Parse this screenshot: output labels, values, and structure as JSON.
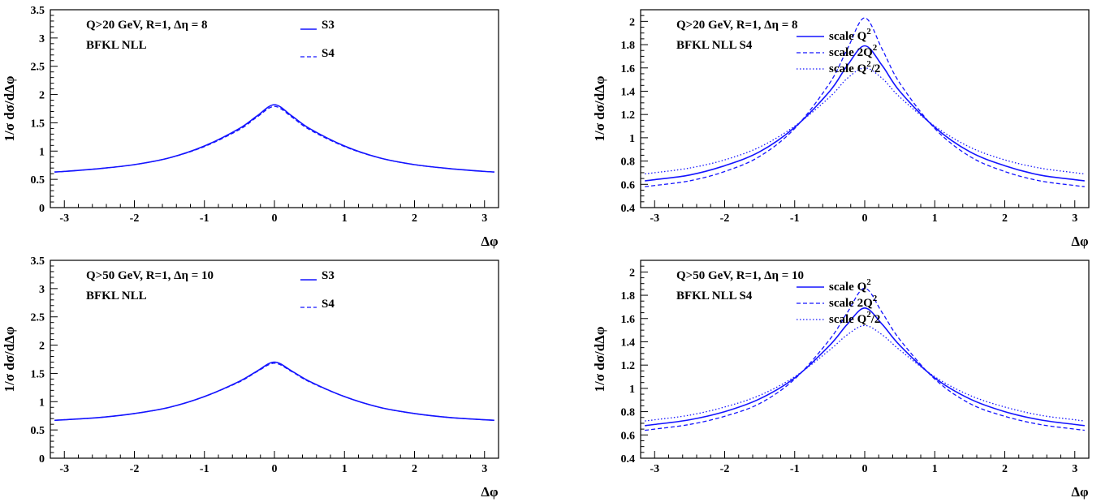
{
  "colors": {
    "series": "#1414ff",
    "axis": "#000000",
    "background": "#ffffff"
  },
  "chart_data": [
    {
      "type": "line",
      "annotation": [
        "Q>20 GeV, R=1, Δη = 8",
        "BFKL NLL"
      ],
      "xlabel": "Δφ",
      "ylabel": "1/σ dσ/dΔφ",
      "xlim": [
        -3.2,
        3.2
      ],
      "ylim": [
        0,
        3.5
      ],
      "xticks": [
        -3,
        -2,
        -1,
        0,
        1,
        2,
        3
      ],
      "yticks": [
        0,
        0.5,
        1,
        1.5,
        2,
        2.5,
        3,
        3.5
      ],
      "yticklabels": [
        "0",
        "0.5",
        "1",
        "1.5",
        "2",
        "2.5",
        "3",
        "3.5"
      ],
      "legend_position": "top-center",
      "x": [
        -3.14,
        -3,
        -2.5,
        -2,
        -1.5,
        -1,
        -0.5,
        -0.25,
        0,
        0.25,
        0.5,
        1,
        1.5,
        2,
        2.5,
        3,
        3.14
      ],
      "series": [
        {
          "name": "S3",
          "style": "solid",
          "values": [
            0.63,
            0.64,
            0.69,
            0.76,
            0.88,
            1.09,
            1.4,
            1.62,
            1.82,
            1.62,
            1.4,
            1.09,
            0.88,
            0.76,
            0.69,
            0.64,
            0.63
          ]
        },
        {
          "name": "S4",
          "style": "dashed",
          "values": [
            0.63,
            0.64,
            0.69,
            0.76,
            0.88,
            1.08,
            1.38,
            1.6,
            1.79,
            1.6,
            1.38,
            1.08,
            0.88,
            0.76,
            0.69,
            0.64,
            0.63
          ]
        }
      ]
    },
    {
      "type": "line",
      "annotation": [
        "Q>20 GeV, R=1, Δη = 8",
        "BFKL NLL S4"
      ],
      "xlabel": "Δφ",
      "ylabel": "1/σ dσ/dΔφ",
      "xlim": [
        -3.2,
        3.2
      ],
      "ylim": [
        0.4,
        2.1
      ],
      "xticks": [
        -3,
        -2,
        -1,
        0,
        1,
        2,
        3
      ],
      "yticks": [
        0.4,
        0.6,
        0.8,
        1.0,
        1.2,
        1.4,
        1.6,
        1.8,
        2.0
      ],
      "yticklabels": [
        "0.4",
        "0.6",
        "0.8",
        "1",
        "1.2",
        "1.4",
        "1.6",
        "1.8",
        "2"
      ],
      "legend_position": "top-right",
      "x": [
        -3.14,
        -3,
        -2.5,
        -2,
        -1.5,
        -1,
        -0.5,
        -0.25,
        0,
        0.25,
        0.5,
        1,
        1.5,
        2,
        2.5,
        3,
        3.14
      ],
      "series": [
        {
          "name": "scale Q",
          "sup": "2",
          "suffix": "",
          "style": "solid",
          "values": [
            0.63,
            0.64,
            0.68,
            0.76,
            0.88,
            1.09,
            1.4,
            1.62,
            1.79,
            1.62,
            1.4,
            1.09,
            0.88,
            0.76,
            0.68,
            0.64,
            0.63
          ]
        },
        {
          "name": "scale 2Q",
          "sup": "2",
          "suffix": "",
          "style": "dashed",
          "values": [
            0.58,
            0.59,
            0.63,
            0.71,
            0.84,
            1.08,
            1.47,
            1.76,
            2.03,
            1.76,
            1.47,
            1.08,
            0.84,
            0.71,
            0.63,
            0.59,
            0.58
          ]
        },
        {
          "name": "scale Q",
          "sup": "2",
          "suffix": "/2",
          "style": "dotted",
          "values": [
            0.69,
            0.7,
            0.74,
            0.81,
            0.92,
            1.1,
            1.35,
            1.51,
            1.6,
            1.51,
            1.35,
            1.1,
            0.92,
            0.81,
            0.74,
            0.7,
            0.69
          ]
        }
      ]
    },
    {
      "type": "line",
      "annotation": [
        "Q>50 GeV, R=1, Δη = 10",
        "BFKL NLL"
      ],
      "xlabel": "Δφ",
      "ylabel": "1/σ dσ/dΔφ",
      "xlim": [
        -3.2,
        3.2
      ],
      "ylim": [
        0,
        3.5
      ],
      "xticks": [
        -3,
        -2,
        -1,
        0,
        1,
        2,
        3
      ],
      "yticks": [
        0,
        0.5,
        1,
        1.5,
        2,
        2.5,
        3,
        3.5
      ],
      "yticklabels": [
        "0",
        "0.5",
        "1",
        "1.5",
        "2",
        "2.5",
        "3",
        "3.5"
      ],
      "legend_position": "top-center",
      "x": [
        -3.14,
        -3,
        -2.5,
        -2,
        -1.5,
        -1,
        -0.5,
        -0.25,
        0,
        0.25,
        0.5,
        1,
        1.5,
        2,
        2.5,
        3,
        3.14
      ],
      "series": [
        {
          "name": "S3",
          "style": "solid",
          "values": [
            0.67,
            0.68,
            0.72,
            0.79,
            0.9,
            1.09,
            1.36,
            1.54,
            1.7,
            1.54,
            1.36,
            1.09,
            0.9,
            0.79,
            0.72,
            0.68,
            0.67
          ]
        },
        {
          "name": "S4",
          "style": "dashed",
          "values": [
            0.67,
            0.68,
            0.72,
            0.79,
            0.9,
            1.09,
            1.35,
            1.53,
            1.68,
            1.53,
            1.35,
            1.09,
            0.9,
            0.79,
            0.72,
            0.68,
            0.67
          ]
        }
      ]
    },
    {
      "type": "line",
      "annotation": [
        "Q>50 GeV, R=1, Δη = 10",
        "BFKL NLL S4"
      ],
      "xlabel": "Δφ",
      "ylabel": "1/σ dσ/dΔφ",
      "xlim": [
        -3.2,
        3.2
      ],
      "ylim": [
        0.4,
        2.1
      ],
      "xticks": [
        -3,
        -2,
        -1,
        0,
        1,
        2,
        3
      ],
      "yticks": [
        0.4,
        0.6,
        0.8,
        1.0,
        1.2,
        1.4,
        1.6,
        1.8,
        2.0
      ],
      "yticklabels": [
        "0.4",
        "0.6",
        "0.8",
        "1",
        "1.2",
        "1.4",
        "1.6",
        "1.8",
        "2"
      ],
      "legend_position": "top-right",
      "x": [
        -3.14,
        -3,
        -2.5,
        -2,
        -1.5,
        -1,
        -0.5,
        -0.25,
        0,
        0.25,
        0.5,
        1,
        1.5,
        2,
        2.5,
        3,
        3.14
      ],
      "series": [
        {
          "name": "scale Q",
          "sup": "2",
          "suffix": "",
          "style": "solid",
          "values": [
            0.68,
            0.69,
            0.73,
            0.8,
            0.91,
            1.09,
            1.37,
            1.55,
            1.69,
            1.55,
            1.37,
            1.09,
            0.91,
            0.8,
            0.73,
            0.69,
            0.68
          ]
        },
        {
          "name": "scale 2Q",
          "sup": "2",
          "suffix": "",
          "style": "dashed",
          "values": [
            0.64,
            0.65,
            0.69,
            0.76,
            0.87,
            1.08,
            1.42,
            1.65,
            1.86,
            1.65,
            1.42,
            1.08,
            0.87,
            0.76,
            0.69,
            0.65,
            0.64
          ]
        },
        {
          "name": "scale Q",
          "sup": "2",
          "suffix": "/2",
          "style": "dotted",
          "values": [
            0.72,
            0.73,
            0.77,
            0.84,
            0.94,
            1.1,
            1.33,
            1.46,
            1.54,
            1.46,
            1.33,
            1.1,
            0.94,
            0.84,
            0.77,
            0.73,
            0.72
          ]
        }
      ]
    }
  ]
}
